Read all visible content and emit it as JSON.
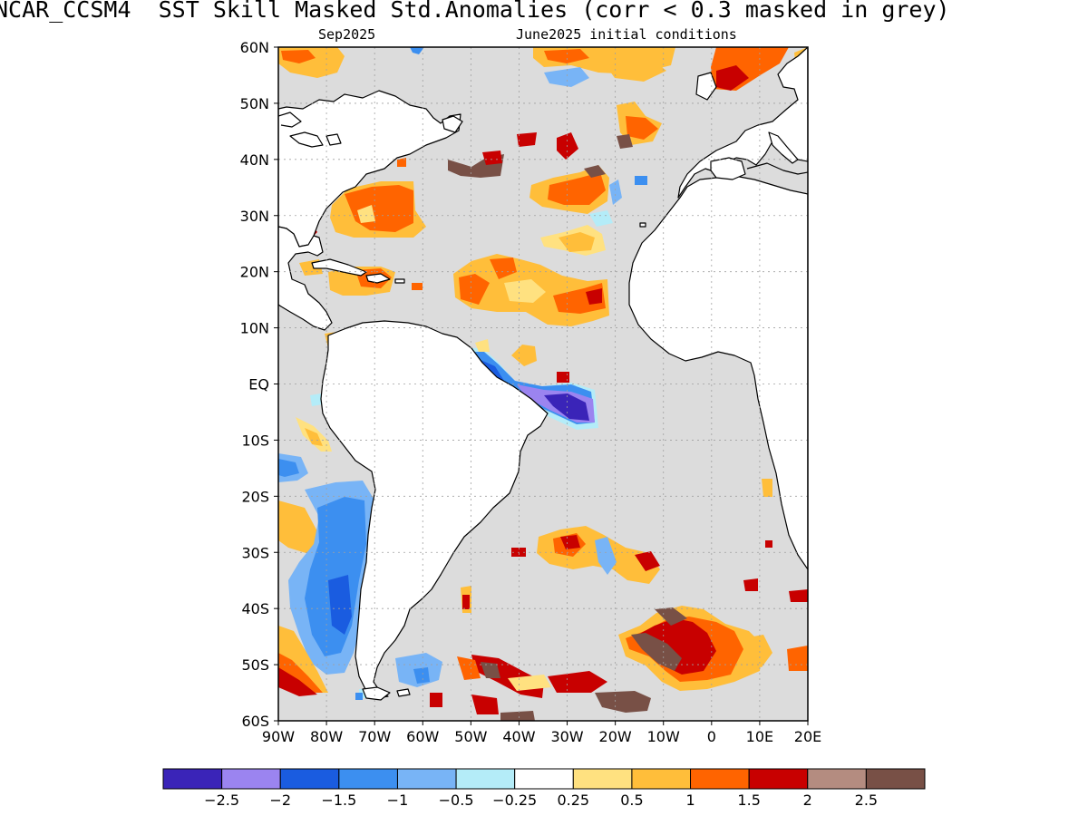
{
  "header": {
    "title": "NCAR_CCSM4  SST Skill Masked Std.Anomalies (corr < 0.3 masked in grey)",
    "valid_month": "Sep2025",
    "initial_conditions": "June2025 initial conditions"
  },
  "map": {
    "domain": {
      "lon_range": [
        -90,
        20
      ],
      "lat_range": [
        -60,
        60
      ]
    },
    "lat_ticks": [
      {
        "value": 60,
        "label": "60N"
      },
      {
        "value": 50,
        "label": "50N"
      },
      {
        "value": 40,
        "label": "40N"
      },
      {
        "value": 30,
        "label": "30N"
      },
      {
        "value": 20,
        "label": "20N"
      },
      {
        "value": 10,
        "label": "10N"
      },
      {
        "value": 0,
        "label": "EQ"
      },
      {
        "value": -10,
        "label": "10S"
      },
      {
        "value": -20,
        "label": "20S"
      },
      {
        "value": -30,
        "label": "30S"
      },
      {
        "value": -40,
        "label": "40S"
      },
      {
        "value": -50,
        "label": "50S"
      },
      {
        "value": -60,
        "label": "60S"
      }
    ],
    "lon_ticks": [
      {
        "value": -90,
        "label": "90W"
      },
      {
        "value": -80,
        "label": "80W"
      },
      {
        "value": -70,
        "label": "70W"
      },
      {
        "value": -60,
        "label": "60W"
      },
      {
        "value": -50,
        "label": "50W"
      },
      {
        "value": -40,
        "label": "40W"
      },
      {
        "value": -30,
        "label": "30W"
      },
      {
        "value": -20,
        "label": "20W"
      },
      {
        "value": -10,
        "label": "10W"
      },
      {
        "value": 0,
        "label": "0"
      },
      {
        "value": 10,
        "label": "10E"
      },
      {
        "value": 20,
        "label": "20E"
      }
    ],
    "colors": {
      "ocean_masked": "#dcdcdc",
      "land": "#ffffff",
      "coastline": "#000000",
      "grid": "#a0a0a0"
    },
    "regions": [
      {
        "name": "equatorial-cold-anomaly",
        "level": -2.5,
        "lon": -30,
        "lat": -4
      },
      {
        "name": "tropical-north-warm-anomaly",
        "level": 1,
        "lon": -35,
        "lat": 15
      },
      {
        "name": "subtropical-north-warm-anomaly",
        "level": 1.5,
        "lon": -67,
        "lat": 30
      },
      {
        "name": "southeast-pacific-cold-anomaly",
        "level": -1,
        "lon": -83,
        "lat": -35
      },
      {
        "name": "southern-ocean-warm-anomaly",
        "level": 2,
        "lon": 0,
        "lat": -50
      }
    ]
  },
  "colorbar": {
    "colors": [
      "#3a24b8",
      "#9b84f0",
      "#1a5ce0",
      "#3c8ff0",
      "#78b4f6",
      "#b4ecf8",
      "#ffffff",
      "#ffe180",
      "#ffbe3a",
      "#ff6400",
      "#c80000",
      "#b48c80",
      "#785046"
    ],
    "labels": [
      "-2.5",
      "-2",
      "-1.5",
      "-1",
      "-0.5",
      "-0.25",
      "0.25",
      "0.5",
      "1",
      "1.5",
      "2",
      "2.5"
    ]
  }
}
